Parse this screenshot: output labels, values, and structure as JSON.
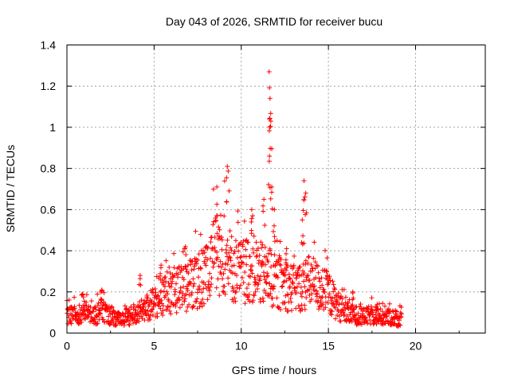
{
  "chart_data": {
    "type": "scatter",
    "title": "Day 043 of 2026, SRMTID for receiver bucu",
    "xlabel": "GPS time / hours",
    "ylabel": "SRMTID / TECUs",
    "xlim": [
      0,
      24
    ],
    "ylim": [
      0,
      1.4
    ],
    "x_ticks": [
      0,
      5,
      10,
      15,
      20
    ],
    "x_tick_labels": [
      "0",
      "5",
      "10",
      "15",
      "20"
    ],
    "y_ticks": [
      0,
      0.2,
      0.4,
      0.6,
      0.8,
      1.0,
      1.2,
      1.4
    ],
    "y_tick_labels": [
      "0",
      "0.2",
      "0.4",
      "0.6",
      "0.8",
      "1",
      "1.2",
      "1.4"
    ],
    "grid": true,
    "marker": "+",
    "series": [
      {
        "name": "SRMTID",
        "color": "#ff0000",
        "profile_x": [
          0,
          0.5,
          1,
          1.5,
          2,
          2.5,
          3,
          3.5,
          4,
          4.5,
          5,
          5.5,
          6,
          6.5,
          7,
          7.5,
          8,
          8.5,
          9,
          9.5,
          10,
          10.5,
          11,
          11.5,
          12,
          12.5,
          13,
          13.5,
          14,
          14.5,
          15,
          15.5,
          16,
          16.5,
          17,
          17.5,
          18,
          18.5,
          19,
          19.2
        ],
        "profile_y": [
          0.08,
          0.09,
          0.1,
          0.08,
          0.11,
          0.09,
          0.07,
          0.08,
          0.1,
          0.12,
          0.15,
          0.18,
          0.2,
          0.22,
          0.24,
          0.25,
          0.3,
          0.38,
          0.4,
          0.32,
          0.3,
          0.33,
          0.3,
          0.28,
          0.25,
          0.24,
          0.22,
          0.23,
          0.26,
          0.22,
          0.2,
          0.14,
          0.1,
          0.09,
          0.08,
          0.09,
          0.08,
          0.08,
          0.07,
          0.08
        ],
        "x_start": 0,
        "x_end": 19.2,
        "sample_count": 1200,
        "peaks": [
          {
            "x": 0.9,
            "y": 0.19
          },
          {
            "x": 2.0,
            "y": 0.21
          },
          {
            "x": 4.2,
            "y": 0.28
          },
          {
            "x": 5.4,
            "y": 0.33
          },
          {
            "x": 6.8,
            "y": 0.42
          },
          {
            "x": 8.6,
            "y": 0.71
          },
          {
            "x": 9.2,
            "y": 0.81
          },
          {
            "x": 10.6,
            "y": 0.6
          },
          {
            "x": 11.3,
            "y": 0.65
          },
          {
            "x": 11.6,
            "y": 1.27
          },
          {
            "x": 11.65,
            "y": 1.14
          },
          {
            "x": 11.7,
            "y": 1.03
          },
          {
            "x": 11.62,
            "y": 0.86
          },
          {
            "x": 11.75,
            "y": 0.71
          },
          {
            "x": 11.9,
            "y": 0.6
          },
          {
            "x": 12.6,
            "y": 0.41
          },
          {
            "x": 13.6,
            "y": 0.74
          },
          {
            "x": 13.7,
            "y": 0.68
          },
          {
            "x": 13.5,
            "y": 0.55
          },
          {
            "x": 14.9,
            "y": 0.3
          },
          {
            "x": 16.4,
            "y": 0.2
          },
          {
            "x": 17.8,
            "y": 0.14
          }
        ]
      }
    ]
  }
}
